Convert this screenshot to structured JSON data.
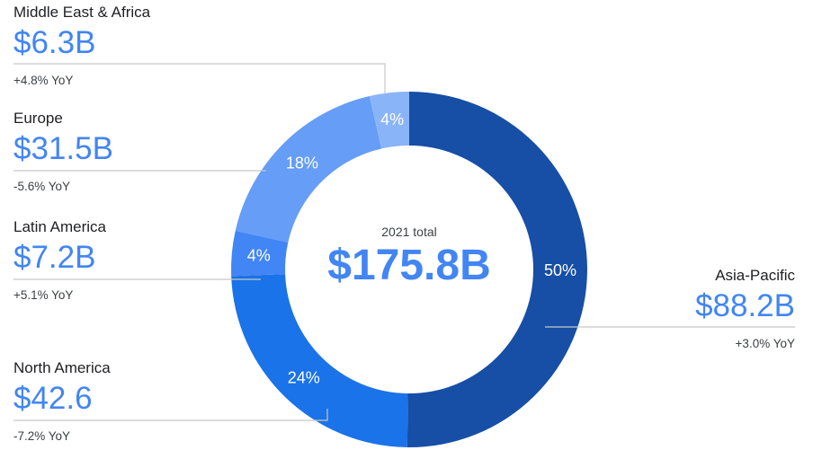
{
  "chart_data": {
    "type": "pie",
    "donut": true,
    "center": {
      "subtitle": "2021 total",
      "total": "$175.8B"
    },
    "slices": [
      {
        "region": "Asia-Pacific",
        "value_label": "$88.2B",
        "yoy": "+3.0% YoY",
        "value": 88.2,
        "percent_label": "50%",
        "color": "#174ea6"
      },
      {
        "region": "North America",
        "value_label": "$42.6",
        "yoy": "-7.2% YoY",
        "value": 42.6,
        "percent_label": "24%",
        "color": "#1a73e8"
      },
      {
        "region": "Latin America",
        "value_label": "$7.2B",
        "yoy": "+5.1% YoY",
        "value": 7.2,
        "percent_label": "4%",
        "color": "#4285f4"
      },
      {
        "region": "Europe",
        "value_label": "$31.5B",
        "yoy": "-5.6% YoY",
        "value": 31.5,
        "percent_label": "18%",
        "color": "#669df6"
      },
      {
        "region": "Middle East & Africa",
        "value_label": "$6.3B",
        "yoy": "+4.8% YoY",
        "value": 6.3,
        "percent_label": "4%",
        "color": "#8ab4f8"
      }
    ]
  }
}
